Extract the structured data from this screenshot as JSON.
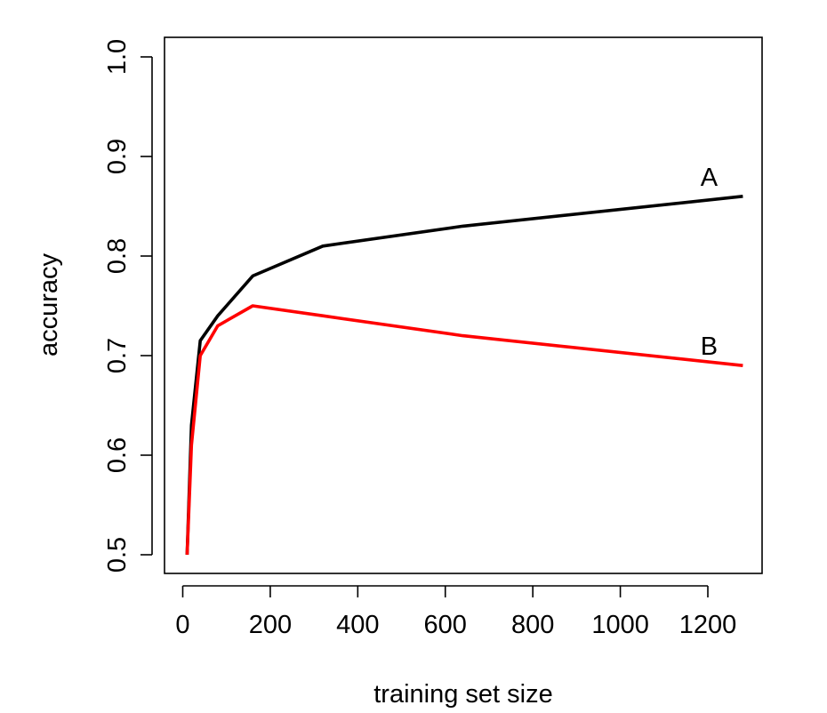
{
  "chart_data": {
    "type": "line",
    "title": "",
    "xlabel": "training set size",
    "ylabel": "accuracy",
    "xlim": [
      0,
      1300
    ],
    "ylim": [
      0.48,
      1.02
    ],
    "x_ticks": [
      0,
      200,
      400,
      600,
      800,
      1000,
      1200
    ],
    "x_tick_labels": [
      "0",
      "200",
      "400",
      "600",
      "800",
      "1000",
      "1200"
    ],
    "y_ticks": [
      0.5,
      0.6,
      0.7,
      0.8,
      0.9,
      1.0
    ],
    "y_tick_labels": [
      "0.5",
      "0.6",
      "0.7",
      "0.8",
      "0.9",
      "1.0"
    ],
    "grid": false,
    "legend": "none",
    "series": [
      {
        "name": "A",
        "color": "#000000",
        "x": [
          10,
          20,
          40,
          80,
          160,
          320,
          640,
          1280
        ],
        "y": [
          0.5,
          0.63,
          0.715,
          0.74,
          0.78,
          0.81,
          0.83,
          0.86
        ]
      },
      {
        "name": "B",
        "color": "#ff0000",
        "x": [
          10,
          20,
          40,
          80,
          160,
          320,
          640,
          1280
        ],
        "y": [
          0.5,
          0.61,
          0.7,
          0.73,
          0.75,
          0.74,
          0.72,
          0.69
        ]
      }
    ]
  }
}
